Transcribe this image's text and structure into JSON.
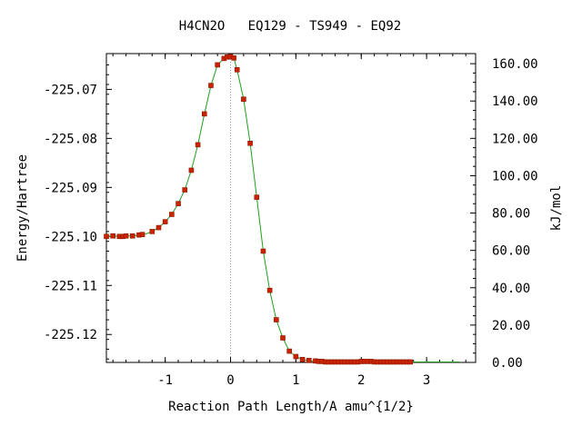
{
  "chart_data": {
    "type": "line",
    "title": "H4CN2O   EQ129 - TS949 - EQ92",
    "xlabel": "Reaction Path Length/A amu^{1/2}",
    "ylabel_left": "Energy/Hartree",
    "ylabel_right": "kJ/mol",
    "xlim": [
      -1.9,
      3.75
    ],
    "ylim_left": [
      -225.1257,
      -225.0627
    ],
    "ylim_right": [
      0,
      165.4
    ],
    "x_ticks": [
      -1,
      0,
      1,
      2,
      3
    ],
    "x_tick_labels": [
      "-1",
      "0",
      "1",
      "2",
      "3"
    ],
    "y_left_ticks": [
      -225.07,
      -225.08,
      -225.09,
      -225.1,
      -225.11,
      -225.12
    ],
    "y_left_tick_labels": [
      "-225.07",
      "-225.08",
      "-225.09",
      "-225.10",
      "-225.11",
      "-225.12"
    ],
    "y_right_ticks": [
      160,
      140,
      120,
      100,
      80,
      60,
      40,
      20,
      0
    ],
    "y_right_tick_labels": [
      "160.00",
      "140.00",
      "120.00",
      "100.00",
      "80.00",
      "60.00",
      "40.00",
      "20.00",
      "0.00"
    ],
    "ts_marker_x": 0,
    "colors": {
      "line": "#1e9e1e",
      "points": "#cc2200",
      "ts_line": "#999999"
    },
    "series": [
      {
        "x": [
          -1.9,
          -1.8,
          -1.7,
          -1.65,
          -1.6,
          -1.5,
          -1.45,
          -1.4,
          -1.35,
          -1.3,
          -1.2,
          -1.1,
          -1.0,
          -0.9,
          -0.8,
          -0.7,
          -0.6,
          -0.5,
          -0.4,
          -0.3,
          -0.2,
          -0.1,
          -0.05,
          0.0,
          0.05,
          0.1,
          0.2,
          0.3,
          0.4,
          0.5,
          0.6,
          0.7,
          0.8,
          0.9,
          1.0,
          1.1,
          1.2,
          1.3,
          1.4,
          1.5,
          1.6,
          1.7,
          1.8,
          1.9,
          2.0,
          2.1,
          2.2,
          2.3,
          2.4,
          2.5,
          2.6,
          2.7,
          2.8,
          3.0,
          3.2,
          3.4,
          3.5
        ],
        "y": [
          -225.1,
          -225.0999,
          -225.1,
          -225.1,
          -225.0999,
          -225.0999,
          -225.0998,
          -225.0997,
          -225.0996,
          -225.0995,
          -225.099,
          -225.0982,
          -225.097,
          -225.0955,
          -225.0933,
          -225.0905,
          -225.0865,
          -225.0813,
          -225.075,
          -225.0692,
          -225.065,
          -225.0637,
          -225.0634,
          -225.0633,
          -225.0636,
          -225.066,
          -225.072,
          -225.081,
          -225.092,
          -225.103,
          -225.111,
          -225.117,
          -225.1207,
          -225.1234,
          -225.1245,
          -225.1251,
          -225.1254,
          -225.1255,
          -225.1256,
          -225.1256,
          -225.1256,
          -225.1256,
          -225.1256,
          -225.1256,
          -225.1255,
          -225.1255,
          -225.1256,
          -225.1256,
          -225.1256,
          -225.1256,
          -225.1256,
          -225.1256,
          -225.1256,
          -225.1256,
          -225.1256,
          -225.1256,
          -225.1256
        ]
      }
    ],
    "points": {
      "x": [
        -1.9,
        -1.8,
        -1.7,
        -1.65,
        -1.6,
        -1.5,
        -1.4,
        -1.35,
        -1.2,
        -1.1,
        -1.0,
        -0.9,
        -0.8,
        -0.7,
        -0.6,
        -0.5,
        -0.4,
        -0.3,
        -0.2,
        -0.1,
        -0.05,
        0.0,
        0.05,
        0.1,
        0.2,
        0.3,
        0.4,
        0.5,
        0.6,
        0.7,
        0.8,
        0.9,
        1.0,
        1.1,
        1.2,
        1.3,
        1.35,
        1.4,
        1.45,
        1.5,
        1.55,
        1.6,
        1.65,
        1.7,
        1.75,
        1.8,
        1.85,
        1.9,
        1.95,
        2.0,
        2.05,
        2.1,
        2.15,
        2.2,
        2.25,
        2.3,
        2.35,
        2.4,
        2.45,
        2.5,
        2.55,
        2.6,
        2.65,
        2.7,
        2.75
      ],
      "y": [
        -225.1,
        -225.0999,
        -225.1,
        -225.1,
        -225.0999,
        -225.0999,
        -225.0997,
        -225.0996,
        -225.099,
        -225.0982,
        -225.097,
        -225.0955,
        -225.0933,
        -225.0905,
        -225.0865,
        -225.0813,
        -225.075,
        -225.0692,
        -225.065,
        -225.0637,
        -225.0634,
        -225.0633,
        -225.0636,
        -225.066,
        -225.072,
        -225.081,
        -225.092,
        -225.103,
        -225.111,
        -225.117,
        -225.1207,
        -225.1234,
        -225.1245,
        -225.1251,
        -225.1253,
        -225.1254,
        -225.1255,
        -225.1255,
        -225.1256,
        -225.1256,
        -225.1256,
        -225.1256,
        -225.1256,
        -225.1256,
        -225.1256,
        -225.1256,
        -225.1256,
        -225.1256,
        -225.1256,
        -225.1255,
        -225.1255,
        -225.1255,
        -225.1255,
        -225.1256,
        -225.1256,
        -225.1256,
        -225.1256,
        -225.1256,
        -225.1256,
        -225.1256,
        -225.1256,
        -225.1256,
        -225.1256,
        -225.1256,
        -225.1256
      ]
    }
  }
}
